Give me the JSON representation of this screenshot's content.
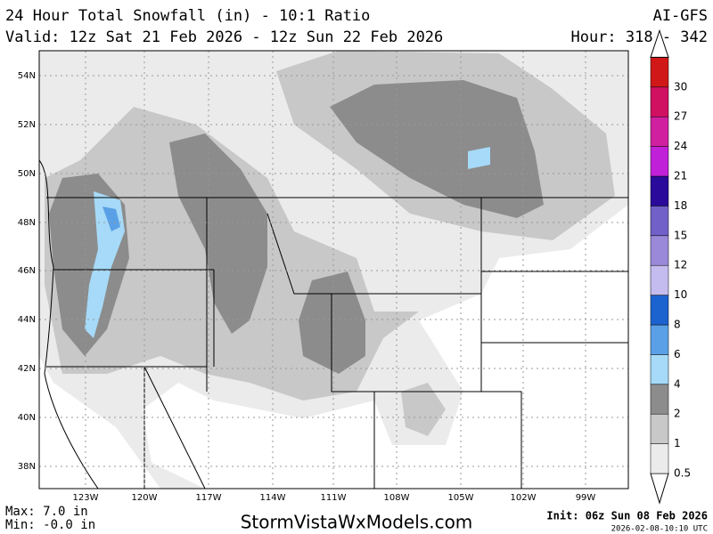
{
  "header": {
    "title": "24 Hour Total Snowfall (in) - 10:1 Ratio",
    "model": "AI-GFS",
    "valid": "Valid: 12z Sat 21 Feb 2026 - 12z Sun 22 Feb 2026",
    "hour": "Hour: 318 - 342"
  },
  "map": {
    "lat_labels": [
      "54N",
      "52N",
      "50N",
      "48N",
      "46N",
      "44N",
      "42N",
      "40N",
      "38N"
    ],
    "lon_labels": [
      "123W",
      "120W",
      "117W",
      "114W",
      "111W",
      "108W",
      "105W",
      "102W",
      "99W"
    ]
  },
  "colorbar": {
    "levels": [
      {
        "value": 0.5,
        "color": "#ebebeb"
      },
      {
        "value": 1,
        "color": "#c8c8c8"
      },
      {
        "value": 2,
        "color": "#8c8c8c"
      },
      {
        "value": 4,
        "color": "#a6daf8"
      },
      {
        "value": 6,
        "color": "#5aa0e6"
      },
      {
        "value": 8,
        "color": "#1d63d0"
      },
      {
        "value": 10,
        "color": "#c4bcee"
      },
      {
        "value": 12,
        "color": "#9a88d8"
      },
      {
        "value": 15,
        "color": "#7060c8"
      },
      {
        "value": 18,
        "color": "#2a0a9a"
      },
      {
        "value": 21,
        "color": "#c020d8"
      },
      {
        "value": 24,
        "color": "#d020a0"
      },
      {
        "value": 27,
        "color": "#d01060"
      },
      {
        "value": 30,
        "color": "#d01818"
      }
    ]
  },
  "footer": {
    "max": "Max: 7.0 in",
    "min": "Min: -0.0 in",
    "site": "StormVistaWxModels.com",
    "init": "Init: 06z Sun 08 Feb 2026",
    "timestamp": "2026-02-08-10:10 UTC"
  }
}
